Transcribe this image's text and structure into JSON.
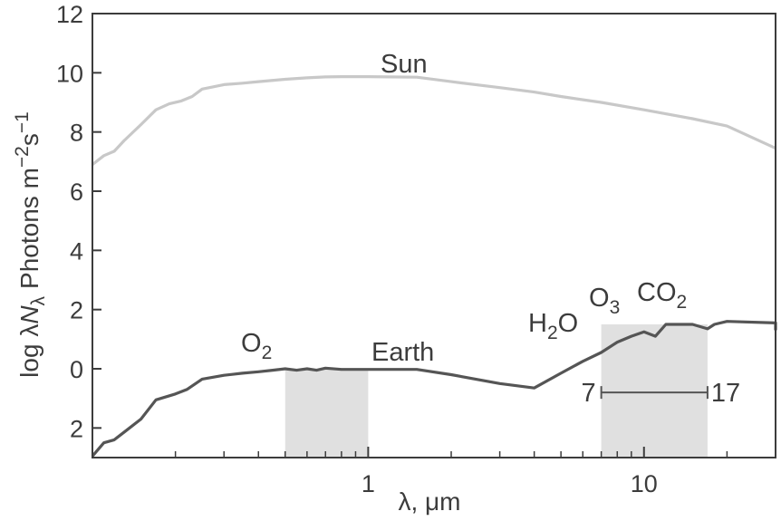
{
  "chart_data": {
    "type": "line",
    "xlabel": "λ, μm",
    "ylabel_parts": {
      "prefix": "log λ",
      "N": "N",
      "N_sub": "λ",
      "units_text": "Photons m",
      "units_exp1": "−2",
      "units_s": "s",
      "units_exp2": "−1"
    },
    "x_scale": "log",
    "xlim": [
      0.1,
      30
    ],
    "ylim": [
      -3,
      12
    ],
    "x_ticks": [
      {
        "value": 1,
        "label": "1"
      },
      {
        "value": 10,
        "label": "10"
      }
    ],
    "y_ticks": [
      {
        "value": 12,
        "label": "12"
      },
      {
        "value": 10,
        "label": "10"
      },
      {
        "value": 8,
        "label": "8"
      },
      {
        "value": 6,
        "label": "6"
      },
      {
        "value": 4,
        "label": "4"
      },
      {
        "value": 2,
        "label": "2"
      },
      {
        "value": 0,
        "label": "0"
      },
      {
        "value": -2,
        "label": "2"
      }
    ],
    "minor_x_ticks": [
      0.2,
      0.3,
      0.4,
      0.5,
      0.6,
      0.7,
      0.8,
      0.9,
      2,
      3,
      4,
      5,
      6,
      7,
      8,
      9,
      20,
      30
    ],
    "series": [
      {
        "name": "Sun",
        "color": "#c8c8c8",
        "points": [
          [
            0.1,
            6.9
          ],
          [
            0.11,
            7.2
          ],
          [
            0.12,
            7.35
          ],
          [
            0.13,
            7.7
          ],
          [
            0.15,
            8.25
          ],
          [
            0.17,
            8.75
          ],
          [
            0.19,
            8.95
          ],
          [
            0.21,
            9.05
          ],
          [
            0.23,
            9.2
          ],
          [
            0.25,
            9.45
          ],
          [
            0.3,
            9.6
          ],
          [
            0.35,
            9.65
          ],
          [
            0.4,
            9.7
          ],
          [
            0.5,
            9.78
          ],
          [
            0.6,
            9.83
          ],
          [
            0.7,
            9.86
          ],
          [
            0.8,
            9.87
          ],
          [
            1.0,
            9.87
          ],
          [
            1.2,
            9.86
          ],
          [
            1.5,
            9.85
          ],
          [
            2,
            9.7
          ],
          [
            3,
            9.5
          ],
          [
            4,
            9.35
          ],
          [
            5,
            9.2
          ],
          [
            7,
            9.0
          ],
          [
            10,
            8.75
          ],
          [
            15,
            8.45
          ],
          [
            20,
            8.2
          ],
          [
            30,
            7.45
          ]
        ]
      },
      {
        "name": "Earth",
        "color": "#555555",
        "points": [
          [
            0.1,
            -2.95
          ],
          [
            0.11,
            -2.5
          ],
          [
            0.12,
            -2.4
          ],
          [
            0.13,
            -2.15
          ],
          [
            0.15,
            -1.7
          ],
          [
            0.17,
            -1.05
          ],
          [
            0.2,
            -0.85
          ],
          [
            0.22,
            -0.7
          ],
          [
            0.25,
            -0.35
          ],
          [
            0.3,
            -0.22
          ],
          [
            0.35,
            -0.15
          ],
          [
            0.4,
            -0.1
          ],
          [
            0.45,
            -0.05
          ],
          [
            0.5,
            0.0
          ],
          [
            0.55,
            -0.05
          ],
          [
            0.6,
            0.0
          ],
          [
            0.65,
            -0.05
          ],
          [
            0.7,
            0.02
          ],
          [
            0.8,
            -0.02
          ],
          [
            0.9,
            -0.02
          ],
          [
            1.0,
            -0.02
          ],
          [
            1.5,
            -0.02
          ],
          [
            2,
            -0.2
          ],
          [
            3,
            -0.5
          ],
          [
            4,
            -0.65
          ],
          [
            5,
            -0.15
          ],
          [
            6,
            0.25
          ],
          [
            7,
            0.55
          ],
          [
            8,
            0.9
          ],
          [
            9,
            1.1
          ],
          [
            10,
            1.25
          ],
          [
            11,
            1.1
          ],
          [
            12,
            1.5
          ],
          [
            15,
            1.5
          ],
          [
            17,
            1.35
          ],
          [
            18,
            1.5
          ],
          [
            20,
            1.6
          ],
          [
            30,
            1.55
          ],
          [
            35,
            1.3
          ]
        ]
      }
    ],
    "shaded_bands": [
      {
        "x0": 0.5,
        "x1": 1.0,
        "label": "O",
        "label_sub": "2",
        "color": "#e0e0e0"
      },
      {
        "x0": 7,
        "x1": 17,
        "color": "#e0e0e0"
      }
    ],
    "annotations": {
      "sun_label": "Sun",
      "earth_label": "Earth",
      "h2o": {
        "a": "H",
        "sub": "2",
        "b": "O"
      },
      "o3": {
        "a": "O",
        "sub": "3"
      },
      "co2": {
        "a": "CO",
        "sub": "2"
      },
      "range_left": "7",
      "range_right": "17"
    }
  }
}
